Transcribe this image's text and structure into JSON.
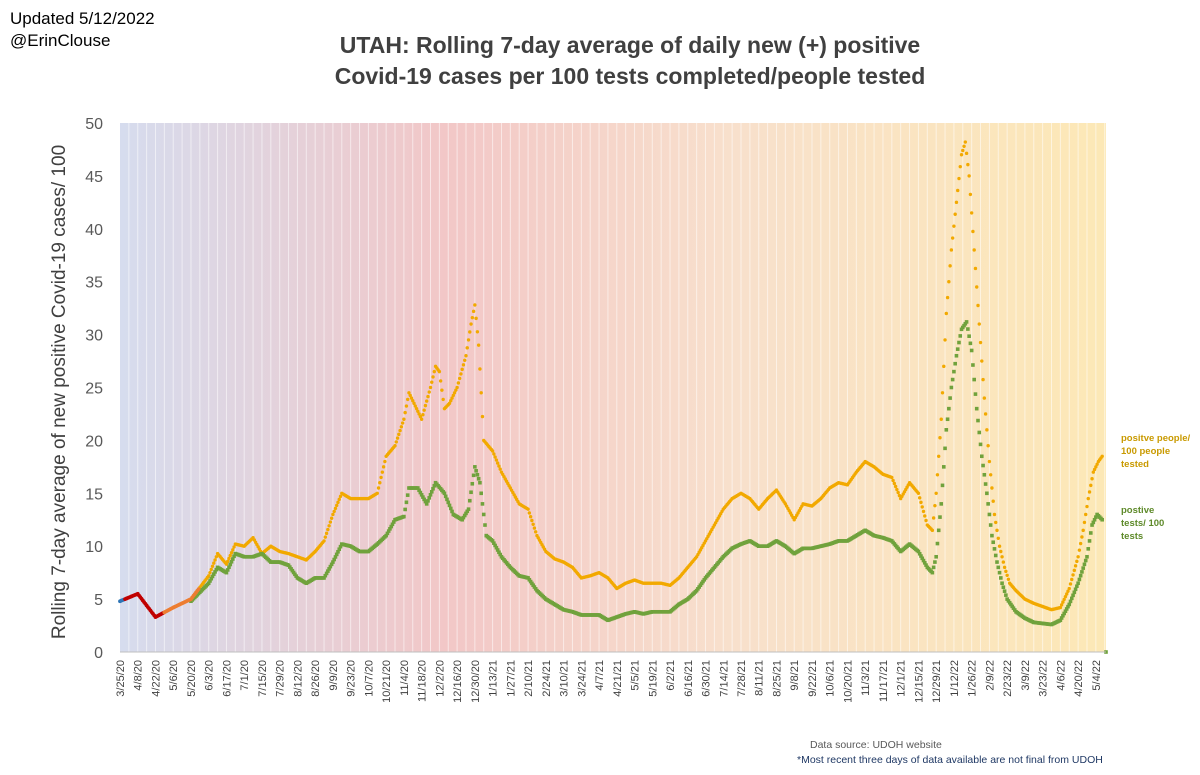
{
  "header": {
    "updated": "Updated 5/12/2022",
    "author": "@ErinClouse"
  },
  "chart_data": {
    "type": "scatter",
    "title": "UTAH: Rolling 7-day average of daily new (+) positive\nCovid-19 cases per 100 tests completed/people tested",
    "xlabel": "",
    "ylabel": "Rolling 7-day average of new positive Covid-19 cases/ 100",
    "ylim": [
      0,
      50
    ],
    "yticks": [
      0,
      5,
      10,
      15,
      20,
      25,
      30,
      35,
      40,
      45,
      50
    ],
    "x_range": [
      "2020-03-25",
      "2022-05-12"
    ],
    "xticks": [
      "3/25/20",
      "4/8/20",
      "4/22/20",
      "5/6/20",
      "5/20/20",
      "6/3/20",
      "6/17/20",
      "7/1/20",
      "7/15/20",
      "7/29/20",
      "8/12/20",
      "8/26/20",
      "9/9/20",
      "9/23/20",
      "10/7/20",
      "10/21/20",
      "11/4/20",
      "11/18/20",
      "12/2/20",
      "12/16/20",
      "12/30/20",
      "1/13/21",
      "1/27/21",
      "2/10/21",
      "2/24/21",
      "3/10/21",
      "3/24/21",
      "4/7/21",
      "4/21/21",
      "5/5/21",
      "5/19/21",
      "6/2/21",
      "6/16/21",
      "6/30/21",
      "7/14/21",
      "7/28/21",
      "8/11/21",
      "8/25/21",
      "9/8/21",
      "9/22/21",
      "10/6/21",
      "10/20/21",
      "11/3/21",
      "11/17/21",
      "12/1/21",
      "12/15/21",
      "12/29/21",
      "1/12/22",
      "1/26/22",
      "2/9/22",
      "2/23/22",
      "3/9/22",
      "3/23/22",
      "4/6/22",
      "4/20/22",
      "5/4/22"
    ],
    "grid": "vertical",
    "series": [
      {
        "name": "positve people/ 100 people tested",
        "color": "#f2a900",
        "points": [
          [
            "2020-03-25",
            4.8
          ],
          [
            "2020-04-08",
            5.5
          ],
          [
            "2020-04-22",
            3.3
          ],
          [
            "2020-05-06",
            4.2
          ],
          [
            "2020-05-20",
            5.0
          ],
          [
            "2020-06-03",
            7.2
          ],
          [
            "2020-06-10",
            9.3
          ],
          [
            "2020-06-17",
            8.3
          ],
          [
            "2020-06-24",
            10.2
          ],
          [
            "2020-07-01",
            10.0
          ],
          [
            "2020-07-08",
            10.8
          ],
          [
            "2020-07-15",
            9.3
          ],
          [
            "2020-07-22",
            10.0
          ],
          [
            "2020-07-29",
            9.5
          ],
          [
            "2020-08-05",
            9.3
          ],
          [
            "2020-08-19",
            8.7
          ],
          [
            "2020-08-26",
            9.5
          ],
          [
            "2020-09-02",
            10.5
          ],
          [
            "2020-09-09",
            13.0
          ],
          [
            "2020-09-16",
            15.0
          ],
          [
            "2020-09-23",
            14.5
          ],
          [
            "2020-10-07",
            14.5
          ],
          [
            "2020-10-14",
            15.0
          ],
          [
            "2020-10-21",
            18.5
          ],
          [
            "2020-10-28",
            19.5
          ],
          [
            "2020-11-04",
            22.0
          ],
          [
            "2020-11-08",
            24.5
          ],
          [
            "2020-11-12",
            23.5
          ],
          [
            "2020-11-18",
            22.0
          ],
          [
            "2020-11-25",
            25.0
          ],
          [
            "2020-11-29",
            27.0
          ],
          [
            "2020-12-02",
            26.5
          ],
          [
            "2020-12-06",
            23.0
          ],
          [
            "2020-12-10",
            23.5
          ],
          [
            "2020-12-16",
            25.0
          ],
          [
            "2020-12-23",
            28.0
          ],
          [
            "2020-12-27",
            31.0
          ],
          [
            "2020-12-30",
            32.8
          ],
          [
            "2021-01-02",
            29.0
          ],
          [
            "2021-01-06",
            20.0
          ],
          [
            "2021-01-13",
            19.0
          ],
          [
            "2021-01-20",
            17.0
          ],
          [
            "2021-01-27",
            15.5
          ],
          [
            "2021-02-03",
            14.0
          ],
          [
            "2021-02-10",
            13.5
          ],
          [
            "2021-02-17",
            11.0
          ],
          [
            "2021-02-24",
            9.5
          ],
          [
            "2021-03-03",
            8.8
          ],
          [
            "2021-03-10",
            8.5
          ],
          [
            "2021-03-17",
            8.0
          ],
          [
            "2021-03-24",
            7.0
          ],
          [
            "2021-03-31",
            7.2
          ],
          [
            "2021-04-07",
            7.5
          ],
          [
            "2021-04-14",
            7.0
          ],
          [
            "2021-04-21",
            6.0
          ],
          [
            "2021-04-28",
            6.5
          ],
          [
            "2021-05-05",
            6.8
          ],
          [
            "2021-05-12",
            6.5
          ],
          [
            "2021-05-19",
            6.5
          ],
          [
            "2021-05-26",
            6.5
          ],
          [
            "2021-06-02",
            6.3
          ],
          [
            "2021-06-09",
            7.0
          ],
          [
            "2021-06-16",
            8.0
          ],
          [
            "2021-06-23",
            9.0
          ],
          [
            "2021-06-30",
            10.5
          ],
          [
            "2021-07-07",
            12.0
          ],
          [
            "2021-07-14",
            13.5
          ],
          [
            "2021-07-21",
            14.5
          ],
          [
            "2021-07-28",
            15.0
          ],
          [
            "2021-08-04",
            14.5
          ],
          [
            "2021-08-11",
            13.5
          ],
          [
            "2021-08-18",
            14.5
          ],
          [
            "2021-08-25",
            15.3
          ],
          [
            "2021-09-01",
            14.0
          ],
          [
            "2021-09-08",
            12.5
          ],
          [
            "2021-09-15",
            14.0
          ],
          [
            "2021-09-22",
            13.8
          ],
          [
            "2021-09-29",
            14.5
          ],
          [
            "2021-10-06",
            15.5
          ],
          [
            "2021-10-13",
            16.0
          ],
          [
            "2021-10-20",
            15.8
          ],
          [
            "2021-10-27",
            17.0
          ],
          [
            "2021-11-03",
            18.0
          ],
          [
            "2021-11-10",
            17.5
          ],
          [
            "2021-11-17",
            16.8
          ],
          [
            "2021-11-24",
            16.5
          ],
          [
            "2021-12-01",
            14.5
          ],
          [
            "2021-12-08",
            16.0
          ],
          [
            "2021-12-15",
            15.0
          ],
          [
            "2021-12-22",
            12.0
          ],
          [
            "2021-12-26",
            11.5
          ],
          [
            "2021-12-29",
            15.0
          ],
          [
            "2022-01-02",
            22.0
          ],
          [
            "2022-01-06",
            32.0
          ],
          [
            "2022-01-10",
            38.0
          ],
          [
            "2022-01-14",
            42.5
          ],
          [
            "2022-01-18",
            47.0
          ],
          [
            "2022-01-21",
            48.2
          ],
          [
            "2022-01-24",
            45.0
          ],
          [
            "2022-01-28",
            38.0
          ],
          [
            "2022-02-01",
            31.0
          ],
          [
            "2022-02-05",
            24.0
          ],
          [
            "2022-02-09",
            18.0
          ],
          [
            "2022-02-13",
            13.0
          ],
          [
            "2022-02-17",
            10.0
          ],
          [
            "2022-02-21",
            8.0
          ],
          [
            "2022-02-25",
            6.5
          ],
          [
            "2022-03-02",
            5.8
          ],
          [
            "2022-03-09",
            5.0
          ],
          [
            "2022-03-16",
            4.6
          ],
          [
            "2022-03-23",
            4.3
          ],
          [
            "2022-03-30",
            4.0
          ],
          [
            "2022-04-06",
            4.2
          ],
          [
            "2022-04-13",
            6.0
          ],
          [
            "2022-04-20",
            9.0
          ],
          [
            "2022-04-24",
            11.5
          ],
          [
            "2022-04-28",
            14.5
          ],
          [
            "2022-05-02",
            17.0
          ],
          [
            "2022-05-06",
            18.0
          ],
          [
            "2022-05-09",
            18.5
          ]
        ]
      },
      {
        "name": "postive tests/ 100 tests",
        "color": "#70a23c",
        "points": [
          [
            "2020-03-25",
            4.8
          ],
          [
            "2020-04-08",
            5.5
          ],
          [
            "2020-04-22",
            3.3
          ],
          [
            "2020-05-06",
            4.2
          ],
          [
            "2020-05-20",
            4.8
          ],
          [
            "2020-06-03",
            6.5
          ],
          [
            "2020-06-10",
            8.0
          ],
          [
            "2020-06-17",
            7.5
          ],
          [
            "2020-06-24",
            9.3
          ],
          [
            "2020-07-01",
            9.0
          ],
          [
            "2020-07-08",
            9.0
          ],
          [
            "2020-07-15",
            9.3
          ],
          [
            "2020-07-22",
            8.5
          ],
          [
            "2020-07-29",
            8.5
          ],
          [
            "2020-08-05",
            8.2
          ],
          [
            "2020-08-12",
            7.0
          ],
          [
            "2020-08-19",
            6.5
          ],
          [
            "2020-08-26",
            7.0
          ],
          [
            "2020-09-02",
            7.0
          ],
          [
            "2020-09-09",
            8.5
          ],
          [
            "2020-09-16",
            10.2
          ],
          [
            "2020-09-23",
            10.0
          ],
          [
            "2020-09-30",
            9.5
          ],
          [
            "2020-10-07",
            9.5
          ],
          [
            "2020-10-14",
            10.2
          ],
          [
            "2020-10-21",
            11.0
          ],
          [
            "2020-10-28",
            12.5
          ],
          [
            "2020-11-04",
            12.8
          ],
          [
            "2020-11-08",
            15.5
          ],
          [
            "2020-11-15",
            15.5
          ],
          [
            "2020-11-22",
            14.0
          ],
          [
            "2020-11-29",
            16.0
          ],
          [
            "2020-12-06",
            15.0
          ],
          [
            "2020-12-13",
            13.0
          ],
          [
            "2020-12-20",
            12.5
          ],
          [
            "2020-12-25",
            13.5
          ],
          [
            "2020-12-30",
            17.5
          ],
          [
            "2021-01-03",
            16.0
          ],
          [
            "2021-01-08",
            11.0
          ],
          [
            "2021-01-13",
            10.5
          ],
          [
            "2021-01-20",
            9.0
          ],
          [
            "2021-01-27",
            8.0
          ],
          [
            "2021-02-03",
            7.2
          ],
          [
            "2021-02-10",
            7.0
          ],
          [
            "2021-02-17",
            5.8
          ],
          [
            "2021-02-24",
            5.0
          ],
          [
            "2021-03-03",
            4.5
          ],
          [
            "2021-03-10",
            4.0
          ],
          [
            "2021-03-17",
            3.8
          ],
          [
            "2021-03-24",
            3.5
          ],
          [
            "2021-03-31",
            3.5
          ],
          [
            "2021-04-07",
            3.5
          ],
          [
            "2021-04-14",
            3.0
          ],
          [
            "2021-04-21",
            3.3
          ],
          [
            "2021-04-28",
            3.6
          ],
          [
            "2021-05-05",
            3.8
          ],
          [
            "2021-05-12",
            3.6
          ],
          [
            "2021-05-19",
            3.8
          ],
          [
            "2021-05-26",
            3.8
          ],
          [
            "2021-06-02",
            3.8
          ],
          [
            "2021-06-09",
            4.5
          ],
          [
            "2021-06-16",
            5.0
          ],
          [
            "2021-06-23",
            5.8
          ],
          [
            "2021-06-30",
            7.0
          ],
          [
            "2021-07-07",
            8.0
          ],
          [
            "2021-07-14",
            9.0
          ],
          [
            "2021-07-21",
            9.8
          ],
          [
            "2021-07-28",
            10.2
          ],
          [
            "2021-08-04",
            10.5
          ],
          [
            "2021-08-11",
            10.0
          ],
          [
            "2021-08-18",
            10.0
          ],
          [
            "2021-08-25",
            10.5
          ],
          [
            "2021-09-01",
            10.0
          ],
          [
            "2021-09-08",
            9.3
          ],
          [
            "2021-09-15",
            9.8
          ],
          [
            "2021-09-22",
            9.8
          ],
          [
            "2021-09-29",
            10.0
          ],
          [
            "2021-10-06",
            10.2
          ],
          [
            "2021-10-13",
            10.5
          ],
          [
            "2021-10-20",
            10.5
          ],
          [
            "2021-10-27",
            11.0
          ],
          [
            "2021-11-03",
            11.5
          ],
          [
            "2021-11-10",
            11.0
          ],
          [
            "2021-11-17",
            10.8
          ],
          [
            "2021-11-24",
            10.5
          ],
          [
            "2021-12-01",
            9.5
          ],
          [
            "2021-12-08",
            10.2
          ],
          [
            "2021-12-15",
            9.5
          ],
          [
            "2021-12-22",
            8.0
          ],
          [
            "2021-12-26",
            7.5
          ],
          [
            "2021-12-29",
            9.0
          ],
          [
            "2022-01-02",
            14.0
          ],
          [
            "2022-01-06",
            21.0
          ],
          [
            "2022-01-10",
            25.0
          ],
          [
            "2022-01-14",
            28.0
          ],
          [
            "2022-01-18",
            30.5
          ],
          [
            "2022-01-22",
            31.2
          ],
          [
            "2022-01-26",
            28.5
          ],
          [
            "2022-01-30",
            23.0
          ],
          [
            "2022-02-03",
            18.5
          ],
          [
            "2022-02-07",
            15.0
          ],
          [
            "2022-02-11",
            11.0
          ],
          [
            "2022-02-15",
            8.5
          ],
          [
            "2022-02-19",
            6.5
          ],
          [
            "2022-02-23",
            5.0
          ],
          [
            "2022-03-02",
            3.8
          ],
          [
            "2022-03-09",
            3.2
          ],
          [
            "2022-03-16",
            2.8
          ],
          [
            "2022-03-23",
            2.7
          ],
          [
            "2022-03-30",
            2.6
          ],
          [
            "2022-04-06",
            3.0
          ],
          [
            "2022-04-13",
            4.5
          ],
          [
            "2022-04-20",
            6.5
          ],
          [
            "2022-04-27",
            9.0
          ],
          [
            "2022-05-01",
            12.0
          ],
          [
            "2022-05-05",
            13.0
          ],
          [
            "2022-05-09",
            12.5
          ],
          [
            "2022-05-12",
            0
          ]
        ]
      }
    ],
    "early_series_colors": [
      "#2e75b6",
      "#c00000",
      "#ed7d31"
    ],
    "background_gradient": [
      "#d6dcee",
      "#f2c7c7",
      "#f8e0cc",
      "#fce8b6"
    ],
    "source": "Data source: UDOH website",
    "note": "*Most recent three days of data available are not final from UDOH"
  }
}
